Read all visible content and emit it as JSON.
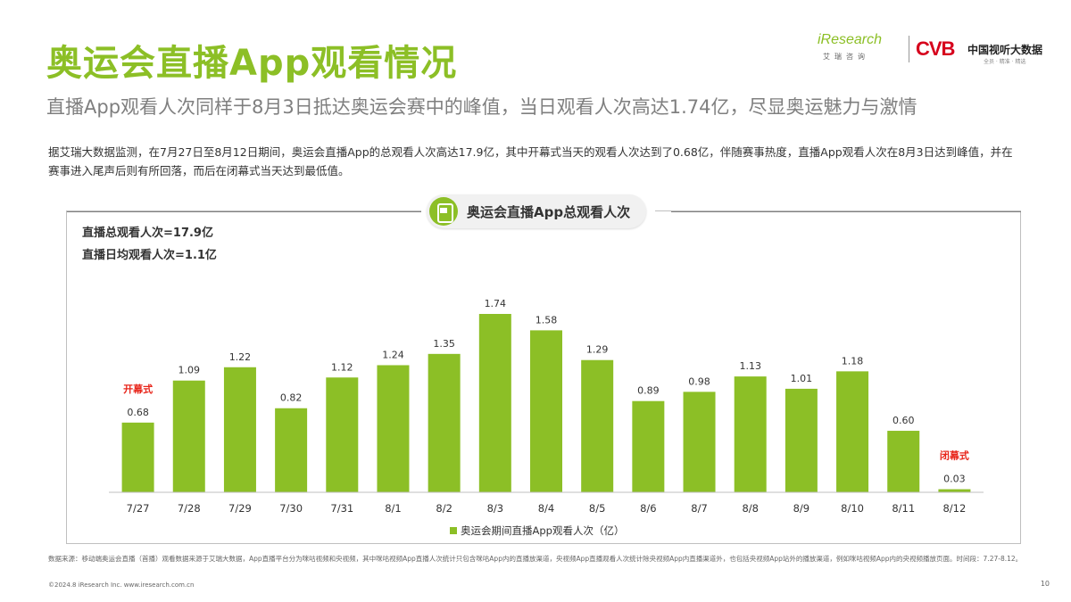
{
  "header": {
    "title": "奥运会直播App观看情况",
    "subtitle": "直播App观看人次同样于8月3日抵达奥运会赛中的峰值，当日观看人次高达1.74亿，尽显奥运魅力与激情"
  },
  "logos": {
    "iresearch": "iResearch",
    "iresearch_cn": "艾瑞咨询",
    "cvb": "CVB",
    "cvb_cn": "中国视听大数据",
    "cvb_tagline": "全员 · 精准 · 精选"
  },
  "description": "据艾瑞大数据监测，在7月27日至8月12日期间，奥运会直播App的总观看人次高达17.9亿，其中开幕式当天的观看人次达到了0.68亿，伴随赛事热度，直播App观看人次在8月3日达到峰值，并在赛事进入尾声后则有所回落，而后在闭幕式当天达到最低值。",
  "stats": {
    "total": "直播总观看人次=17.9亿",
    "daily_avg": "直播日均观看人次=1.1亿"
  },
  "chart_title": "奥运会直播App总观看人次",
  "chart_data": {
    "type": "bar",
    "title": "奥运会直播App总观看人次",
    "categories": [
      "7/27",
      "7/28",
      "7/29",
      "7/30",
      "7/31",
      "8/1",
      "8/2",
      "8/3",
      "8/4",
      "8/5",
      "8/6",
      "8/7",
      "8/8",
      "8/9",
      "8/10",
      "8/11",
      "8/12"
    ],
    "series": [
      {
        "name": "奥运会期间直播App观看人次（亿）",
        "values": [
          0.68,
          1.09,
          1.22,
          0.82,
          1.12,
          1.24,
          1.35,
          1.74,
          1.58,
          1.29,
          0.89,
          0.98,
          1.13,
          1.01,
          1.18,
          0.6,
          0.03
        ],
        "labels": [
          "0.68",
          "1.09",
          "1.22",
          "0.82",
          "1.12",
          "1.24",
          "1.35",
          "1.74",
          "1.58",
          "1.29",
          "0.89",
          "0.98",
          "1.13",
          "1.01",
          "1.18",
          "0.60",
          "0.03"
        ]
      }
    ],
    "annotations": [
      {
        "category": "7/27",
        "text": "开幕式"
      },
      {
        "category": "8/12",
        "text": "闭幕式"
      }
    ],
    "ylim": [
      0,
      1.8
    ],
    "legend": "奥运会期间直播App观看人次（亿）",
    "legend_position": "bottom",
    "colors": {
      "bar": "#8cbf26",
      "annotation": "#e8261b"
    }
  },
  "footer": {
    "source": "数据来源：移动端奥运会直播（首播）观看数据来源于艾瑞大数据，App直播平台分为咪咕视频和央视频，其中咪咕视频App直播人次统计只包含咪咕App内的直播放渠道，央视频App直播观看人次统计除央视频App内直播渠道外，也包括央视频App站外的播放渠道，例如咪咕视频App内的央视频播放页面。时间段：7.27-8.12。",
    "copyright": "©2024.8 iResearch Inc. www.iresearch.com.cn",
    "page": "10"
  }
}
